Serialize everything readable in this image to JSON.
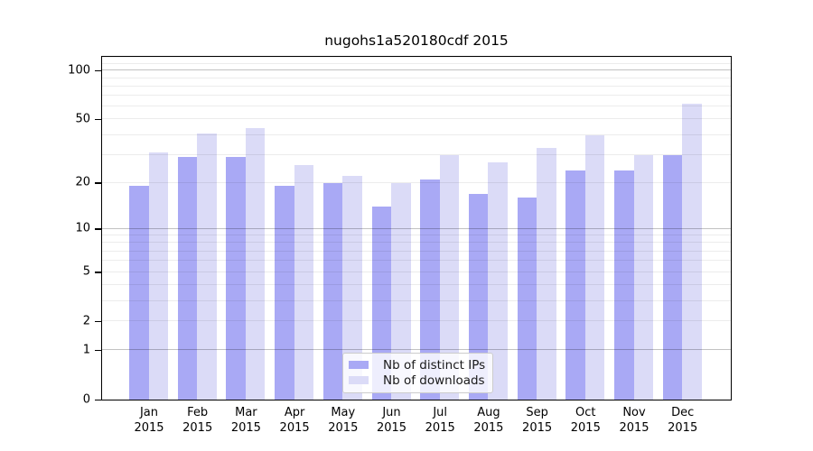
{
  "chart_data": {
    "type": "bar",
    "title": "nugohs1a520180cdf 2015",
    "months": [
      "Jan",
      "Feb",
      "Mar",
      "Apr",
      "May",
      "Jun",
      "Jul",
      "Aug",
      "Sep",
      "Oct",
      "Nov",
      "Dec"
    ],
    "year_label": "2015",
    "series": [
      {
        "name": "Nb of distinct IPs",
        "color": "#a9a9f5",
        "values": [
          19,
          29,
          29,
          19,
          20,
          14,
          21,
          17,
          16,
          24,
          24,
          30
        ]
      },
      {
        "name": "Nb of downloads",
        "color": "#dbdbf7",
        "values": [
          31,
          41,
          44,
          26,
          22,
          20,
          30,
          27,
          33,
          40,
          30,
          63
        ]
      }
    ],
    "y_scale": "log10(value+1)",
    "y_ticks": [
      0,
      1,
      2,
      5,
      10,
      20,
      50,
      100
    ],
    "ylim": [
      0,
      124
    ],
    "grid_major": [
      1,
      10,
      100
    ],
    "grid_minor": [
      2,
      3,
      4,
      5,
      6,
      7,
      8,
      9,
      20,
      30,
      40,
      50,
      60,
      70,
      80,
      90,
      110,
      120
    ],
    "xlabel": "",
    "ylabel": "",
    "legend_position": "bottom-center"
  }
}
